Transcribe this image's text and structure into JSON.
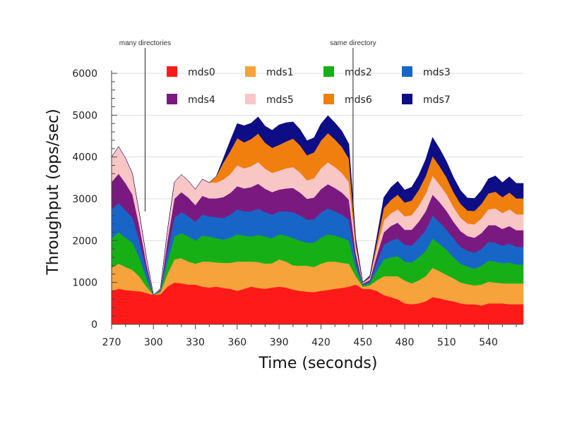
{
  "chart_data": {
    "type": "area",
    "stacked": true,
    "title": "",
    "xlabel": "Time (seconds)",
    "ylabel": "Throughput (ops/sec)",
    "xlim": [
      270,
      565
    ],
    "ylim": [
      0,
      6000
    ],
    "xticks": [
      270,
      300,
      330,
      360,
      390,
      420,
      450,
      480,
      510,
      540
    ],
    "yticks": [
      0,
      1000,
      2000,
      3000,
      4000,
      5000,
      6000
    ],
    "grid": "horizontal",
    "legend_position": "top",
    "annotations": [
      {
        "text": "many directories",
        "x": 294
      },
      {
        "text": "same directory",
        "x": 443
      }
    ],
    "x": [
      270,
      275,
      280,
      285,
      290,
      295,
      300,
      305,
      310,
      315,
      320,
      325,
      330,
      335,
      340,
      345,
      350,
      355,
      360,
      365,
      370,
      375,
      380,
      385,
      390,
      395,
      400,
      405,
      410,
      415,
      420,
      425,
      430,
      435,
      440,
      445,
      450,
      455,
      460,
      465,
      470,
      475,
      480,
      485,
      490,
      495,
      500,
      505,
      510,
      515,
      520,
      525,
      530,
      535,
      540,
      545,
      550,
      555,
      560,
      565
    ],
    "series": [
      {
        "name": "mds0",
        "color": "#ff1a1a",
        "values": [
          800,
          850,
          820,
          800,
          790,
          750,
          700,
          720,
          900,
          1000,
          980,
          950,
          950,
          900,
          880,
          900,
          870,
          850,
          800,
          850,
          900,
          870,
          850,
          880,
          900,
          880,
          830,
          800,
          780,
          770,
          800,
          820,
          850,
          870,
          900,
          950,
          850,
          850,
          800,
          700,
          650,
          600,
          500,
          480,
          500,
          550,
          650,
          620,
          580,
          550,
          500,
          480,
          480,
          450,
          500,
          500,
          500,
          480,
          480,
          480
        ]
      },
      {
        "name": "mds1",
        "color": "#f5a33a",
        "values": [
          550,
          600,
          550,
          500,
          350,
          150,
          0,
          50,
          300,
          550,
          600,
          550,
          500,
          600,
          620,
          580,
          600,
          620,
          700,
          650,
          600,
          620,
          600,
          580,
          650,
          620,
          580,
          600,
          620,
          600,
          650,
          680,
          650,
          600,
          550,
          200,
          50,
          80,
          250,
          450,
          500,
          550,
          550,
          500,
          550,
          600,
          700,
          650,
          600,
          550,
          500,
          480,
          450,
          500,
          520,
          500,
          480,
          500,
          500,
          500
        ]
      },
      {
        "name": "mds2",
        "color": "#16b016",
        "values": [
          700,
          750,
          700,
          650,
          450,
          200,
          0,
          30,
          300,
          550,
          600,
          600,
          550,
          620,
          600,
          580,
          550,
          600,
          650,
          620,
          600,
          650,
          650,
          600,
          600,
          620,
          650,
          600,
          550,
          580,
          620,
          650,
          620,
          600,
          550,
          200,
          30,
          50,
          220,
          400,
          450,
          480,
          450,
          500,
          550,
          600,
          700,
          650,
          600,
          500,
          450,
          420,
          400,
          450,
          500,
          500,
          480,
          500,
          450,
          450
        ]
      },
      {
        "name": "mds3",
        "color": "#1766c7",
        "values": [
          700,
          700,
          650,
          600,
          400,
          200,
          0,
          20,
          250,
          450,
          500,
          480,
          450,
          500,
          480,
          500,
          520,
          550,
          600,
          580,
          600,
          620,
          580,
          560,
          550,
          580,
          620,
          600,
          550,
          560,
          600,
          620,
          580,
          550,
          500,
          180,
          20,
          40,
          200,
          350,
          400,
          420,
          400,
          400,
          450,
          500,
          550,
          520,
          480,
          450,
          400,
          380,
          380,
          400,
          450,
          450,
          420,
          450,
          420,
          420
        ]
      },
      {
        "name": "mds4",
        "color": "#7a1a80",
        "values": [
          650,
          700,
          650,
          550,
          350,
          150,
          0,
          20,
          250,
          450,
          480,
          450,
          400,
          450,
          430,
          450,
          500,
          520,
          550,
          550,
          580,
          600,
          560,
          540,
          520,
          550,
          580,
          550,
          500,
          520,
          560,
          580,
          560,
          530,
          480,
          160,
          20,
          40,
          180,
          300,
          350,
          380,
          360,
          380,
          400,
          450,
          500,
          480,
          450,
          400,
          380,
          350,
          360,
          380,
          400,
          420,
          400,
          420,
          400,
          400
        ]
      },
      {
        "name": "mds5",
        "color": "#f9c6c6",
        "values": [
          600,
          650,
          600,
          500,
          300,
          150,
          0,
          20,
          250,
          400,
          420,
          400,
          380,
          400,
          380,
          380,
          420,
          450,
          500,
          480,
          500,
          520,
          480,
          460,
          450,
          480,
          500,
          480,
          440,
          460,
          500,
          520,
          500,
          470,
          420,
          140,
          20,
          40,
          160,
          280,
          300,
          320,
          320,
          350,
          380,
          420,
          450,
          420,
          400,
          350,
          320,
          300,
          320,
          350,
          380,
          400,
          380,
          400,
          380,
          380
        ]
      },
      {
        "name": "mds6",
        "color": "#f07f0e",
        "values": [
          0,
          0,
          0,
          0,
          0,
          0,
          0,
          0,
          0,
          0,
          0,
          0,
          0,
          0,
          0,
          150,
          400,
          550,
          650,
          620,
          650,
          680,
          620,
          600,
          620,
          640,
          680,
          650,
          600,
          620,
          660,
          700,
          660,
          620,
          560,
          120,
          10,
          30,
          150,
          300,
          320,
          350,
          330,
          350,
          380,
          420,
          470,
          440,
          400,
          360,
          330,
          310,
          320,
          350,
          380,
          400,
          380,
          400,
          380,
          380
        ]
      },
      {
        "name": "mds7",
        "color": "#0d0d85",
        "values": [
          0,
          0,
          0,
          0,
          0,
          0,
          0,
          0,
          0,
          0,
          0,
          0,
          0,
          0,
          0,
          0,
          100,
          250,
          350,
          400,
          380,
          400,
          400,
          420,
          480,
          450,
          400,
          380,
          350,
          350,
          400,
          420,
          400,
          380,
          350,
          100,
          10,
          30,
          120,
          250,
          300,
          320,
          300,
          320,
          350,
          400,
          450,
          420,
          380,
          350,
          320,
          300,
          300,
          320,
          350,
          380,
          350,
          380,
          360,
          360
        ]
      }
    ]
  }
}
